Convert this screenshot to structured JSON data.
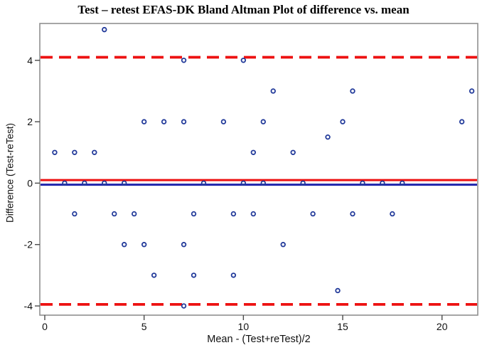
{
  "chart_data": {
    "type": "scatter",
    "title": "Test – retest EFAS-DK Bland Altman Plot of difference vs. mean",
    "xlabel": "Mean - (Test+reTest)/2",
    "ylabel": "Difference (Test-reTest)",
    "xlim": [
      -0.25,
      21.8
    ],
    "ylim": [
      -4.3,
      5.2
    ],
    "x_ticks": [
      0,
      5,
      10,
      15,
      20
    ],
    "y_ticks": [
      -4,
      -2,
      0,
      2,
      4
    ],
    "grid": false,
    "legend": "none",
    "marker": {
      "shape": "open-circle",
      "color": "#223a9a",
      "radius_px": 2.8,
      "stroke_px": 1.8
    },
    "reference_lines": [
      {
        "name": "upper-limit-of-agreement",
        "y": 4.1,
        "style": "dashed",
        "color": "#ed1111"
      },
      {
        "name": "mean-difference",
        "y": 0.1,
        "style": "solid",
        "color": "#ed1111"
      },
      {
        "name": "zero-line",
        "y": -0.05,
        "style": "solid",
        "color": "#1f24ab"
      },
      {
        "name": "lower-limit-of-agreement",
        "y": -3.95,
        "style": "dashed",
        "color": "#ed1111"
      }
    ],
    "points": [
      [
        3,
        5
      ],
      [
        7,
        4
      ],
      [
        10,
        4
      ],
      [
        11.5,
        3
      ],
      [
        15.5,
        3
      ],
      [
        21.5,
        3
      ],
      [
        5,
        2
      ],
      [
        6,
        2
      ],
      [
        7,
        2
      ],
      [
        9,
        2
      ],
      [
        11,
        2
      ],
      [
        15,
        2
      ],
      [
        21,
        2
      ],
      [
        14.25,
        1.5
      ],
      [
        0.5,
        1
      ],
      [
        1.5,
        1
      ],
      [
        2.5,
        1
      ],
      [
        10.5,
        1
      ],
      [
        12.5,
        1
      ],
      [
        1,
        0
      ],
      [
        2,
        0
      ],
      [
        3,
        0
      ],
      [
        4,
        0
      ],
      [
        8,
        0
      ],
      [
        10,
        0
      ],
      [
        11,
        0
      ],
      [
        13,
        0
      ],
      [
        16,
        0
      ],
      [
        17,
        0
      ],
      [
        18,
        0
      ],
      [
        1.5,
        -1
      ],
      [
        3.5,
        -1
      ],
      [
        4.5,
        -1
      ],
      [
        7.5,
        -1
      ],
      [
        9.5,
        -1
      ],
      [
        10.5,
        -1
      ],
      [
        13.5,
        -1
      ],
      [
        15.5,
        -1
      ],
      [
        17.5,
        -1
      ],
      [
        4,
        -2
      ],
      [
        5,
        -2
      ],
      [
        7,
        -2
      ],
      [
        12,
        -2
      ],
      [
        5.5,
        -3
      ],
      [
        7.5,
        -3
      ],
      [
        9.5,
        -3
      ],
      [
        14.75,
        -3.5
      ],
      [
        7,
        -4
      ]
    ],
    "colors": {
      "frame": "#909090",
      "tick": "#4a4a4a",
      "text": "#111111",
      "background": "#ffffff"
    }
  }
}
